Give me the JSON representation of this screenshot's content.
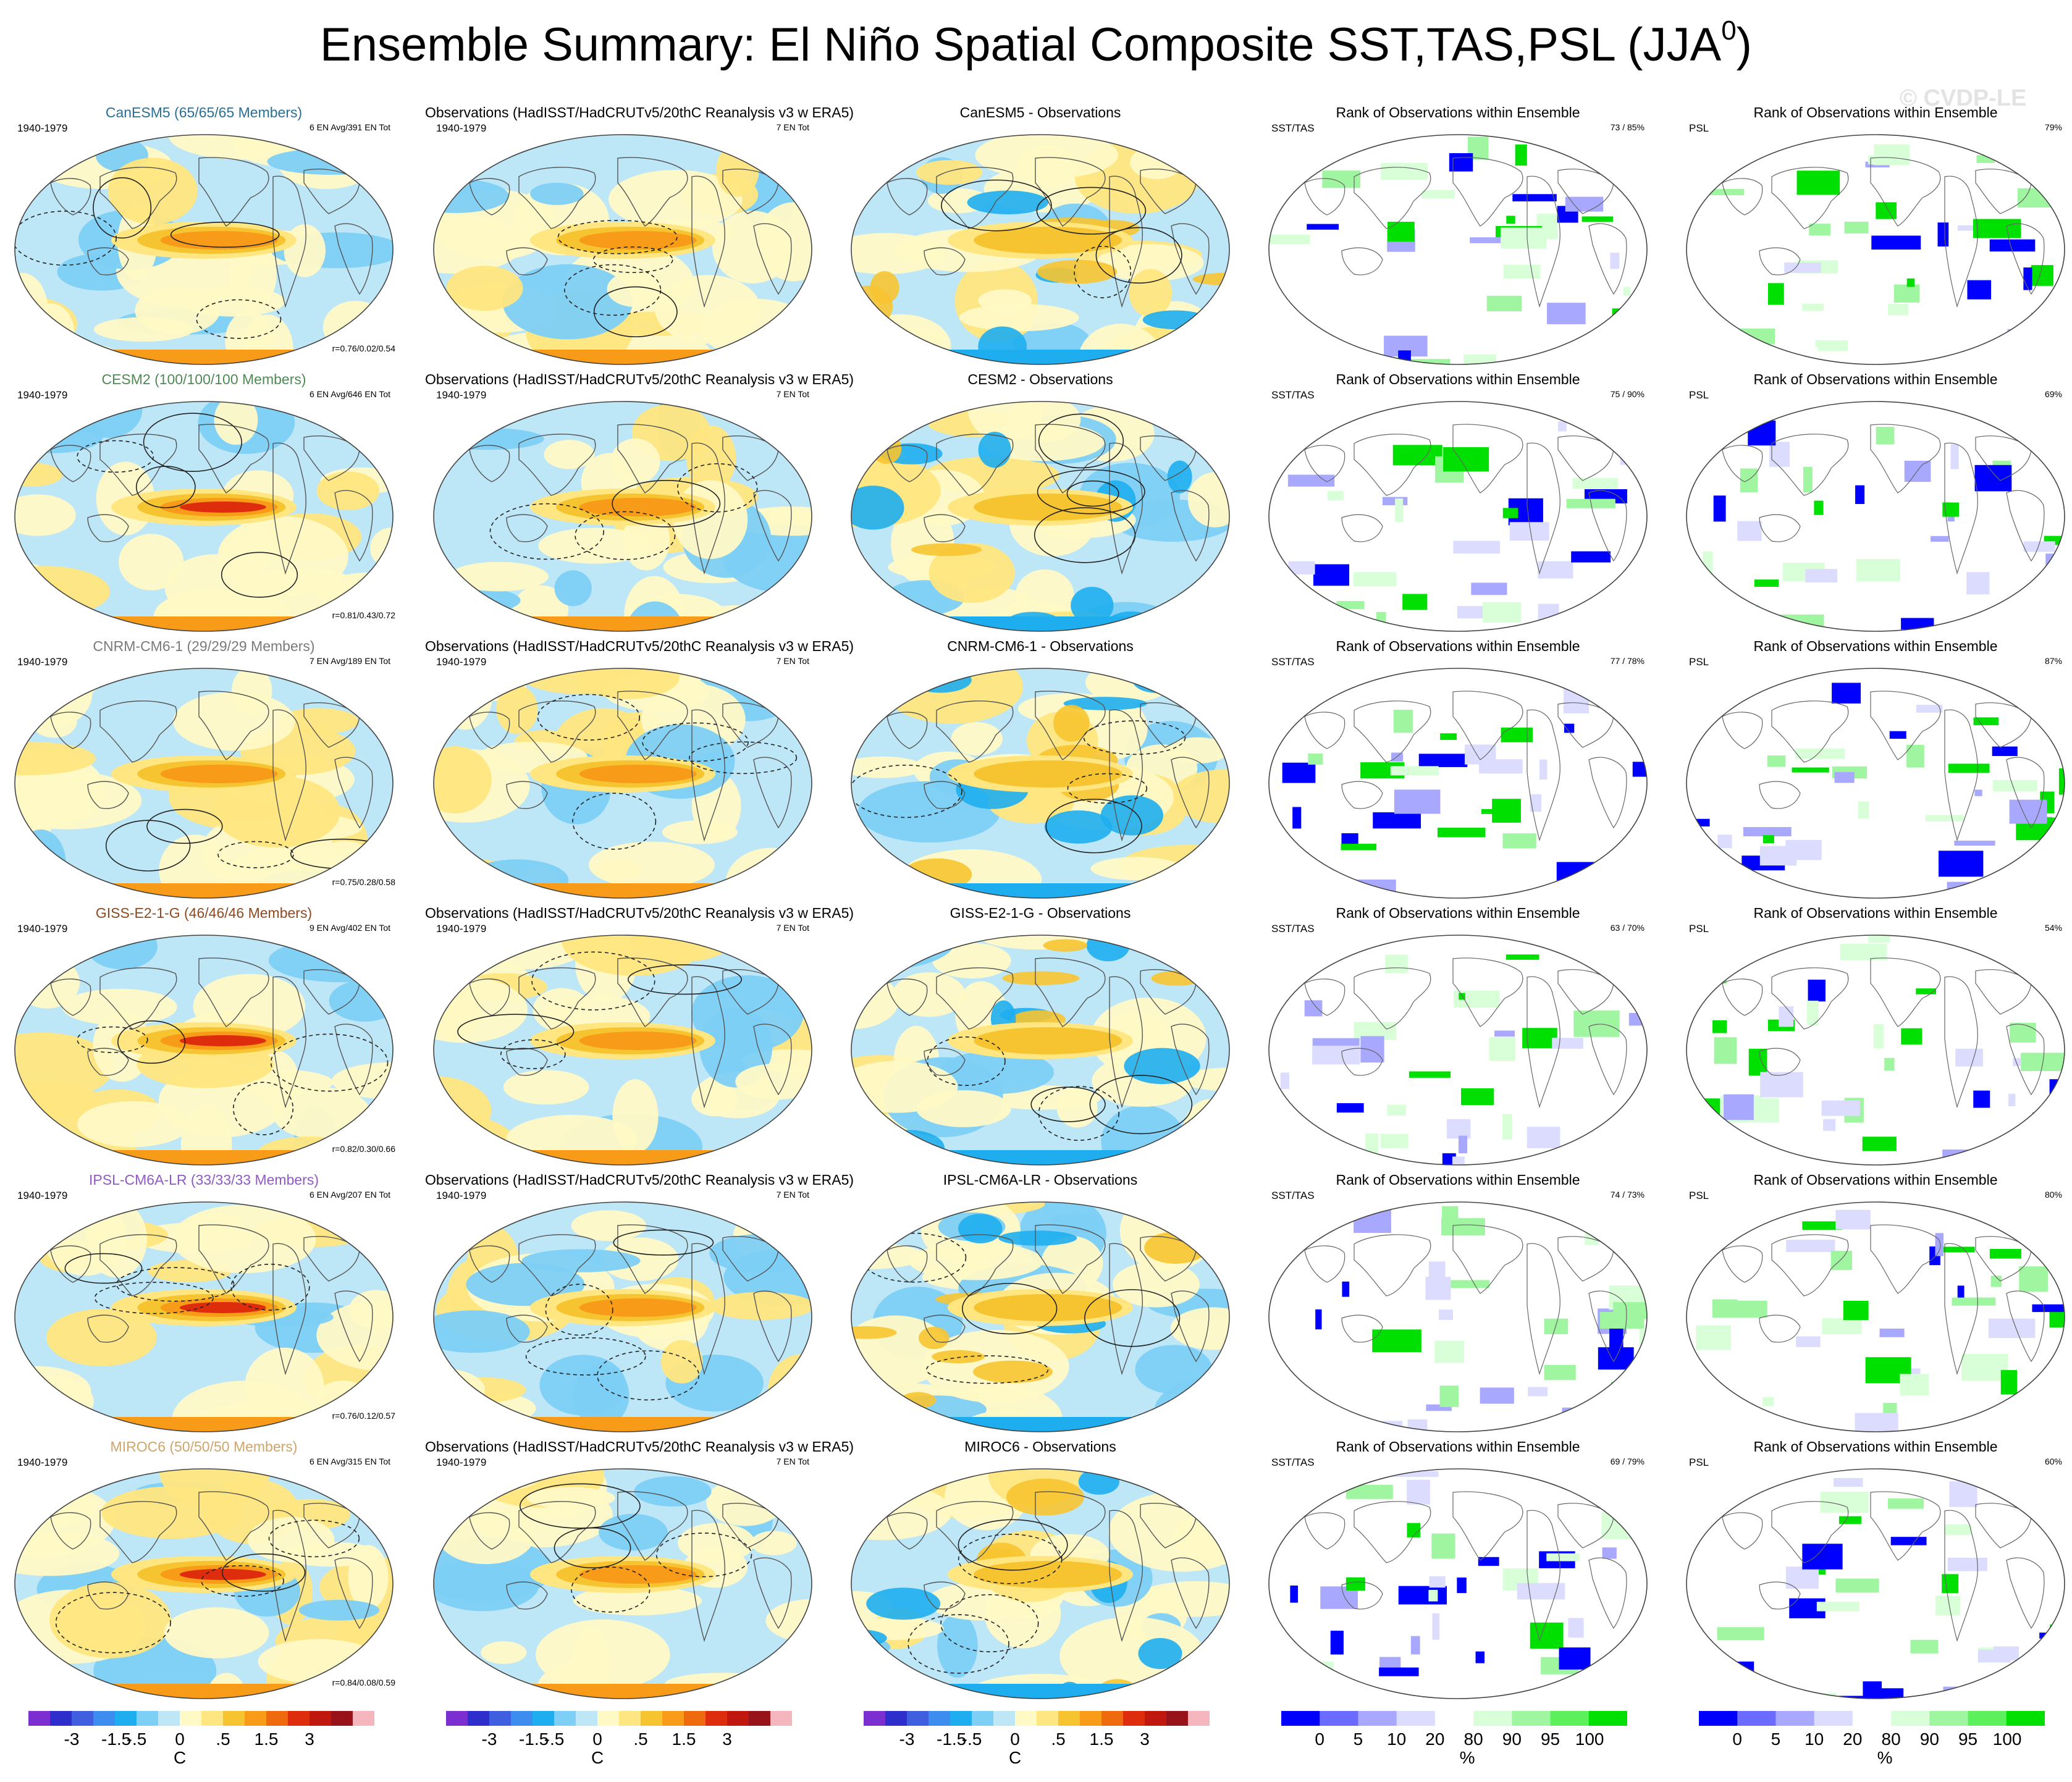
{
  "title": {
    "main": "Ensemble Summary: El Niño Spatial Composite SST,TAS,PSL (JJA",
    "superscript": "0",
    "close": ")"
  },
  "watermark": "© CVDP-LE",
  "colors": {
    "model_title": [
      "#2a6f93",
      "#4f8a55",
      "#7a7a7a",
      "#8b4a22",
      "#8f5bc2",
      "#cda56d"
    ],
    "temperature_scale": [
      "#7b2fd0",
      "#2e2ecc",
      "#3f5fe0",
      "#3d8cf0",
      "#1eaef0",
      "#7dcff5",
      "#bde6f7",
      "#fff9c6",
      "#ffe680",
      "#f7c431",
      "#f79b18",
      "#ee6a0d",
      "#dd2d0c",
      "#c0180f",
      "#98121a",
      "#f5b5bd"
    ],
    "rank_scale": [
      "#0000ff",
      "#6b6bff",
      "#a8a8ff",
      "#dcdcff",
      "#ffffff",
      "#d8ffd8",
      "#a0f5a0",
      "#5cf05c",
      "#00e000"
    ]
  },
  "column_titles": {
    "observations": "Observations (HadISST/HadCRUTv5/20thC Reanalysis v3 w ERA5)",
    "rank": "Rank of Observations within Ensemble",
    "diff_suffix": " - Observations"
  },
  "labels": {
    "period": "1940-1979",
    "obs_count": "7 EN Tot",
    "sst_tas": "SST/TAS",
    "psl": "PSL"
  },
  "rows": [
    {
      "model": "CanESM5",
      "title": "CanESM5 (65/65/65 Members)",
      "ens_info": "6 EN Avg/391 EN Tot",
      "corr": "r=0.76/0.02/0.54",
      "rank_sst": "73 /  85%",
      "rank_psl": "79%"
    },
    {
      "model": "CESM2",
      "title": "CESM2 (100/100/100 Members)",
      "ens_info": "6 EN Avg/646 EN Tot",
      "corr": "r=0.81/0.43/0.72",
      "rank_sst": "75 /  90%",
      "rank_psl": "69%"
    },
    {
      "model": "CNRM-CM6-1",
      "title": "CNRM-CM6-1 (29/29/29 Members)",
      "ens_info": "7 EN Avg/189 EN Tot",
      "corr": "r=0.75/0.28/0.58",
      "rank_sst": "77 /  78%",
      "rank_psl": "87%"
    },
    {
      "model": "GISS-E2-1-G",
      "title": "GISS-E2-1-G (46/46/46 Members)",
      "ens_info": "9 EN Avg/402 EN Tot",
      "corr": "r=0.82/0.30/0.66",
      "rank_sst": "63 /  70%",
      "rank_psl": "54%"
    },
    {
      "model": "IPSL-CM6A-LR",
      "title": "IPSL-CM6A-LR (33/33/33 Members)",
      "ens_info": "6 EN Avg/207 EN Tot",
      "corr": "r=0.76/0.12/0.57",
      "rank_sst": "74 /  73%",
      "rank_psl": "80%"
    },
    {
      "model": "MIROC6",
      "title": "MIROC6 (50/50/50 Members)",
      "ens_info": "6 EN Avg/315 EN Tot",
      "corr": "r=0.84/0.08/0.59",
      "rank_sst": "69 /  79%",
      "rank_psl": "60%"
    }
  ],
  "colorbars": {
    "temperature": {
      "tick_labels": [
        "-3",
        "-1.5",
        "-.5",
        "0",
        ".5",
        "1.5",
        "3"
      ],
      "unit": "C"
    },
    "rank": {
      "tick_labels": [
        "0",
        "5",
        "10",
        "20",
        "80",
        "90",
        "95",
        "100"
      ],
      "unit": "%"
    }
  },
  "chart_data": {
    "type": "heatmap",
    "description_title": "Ensemble Summary: El Niño Spatial Composite SST,TAS,PSL (JJA0)",
    "period": "1940-1979",
    "models": [
      "CanESM5",
      "CESM2",
      "CNRM-CM6-1",
      "GISS-E2-1-G",
      "IPSL-CM6A-LR",
      "MIROC6"
    ],
    "members": [
      65,
      100,
      29,
      46,
      33,
      50
    ],
    "en_avg": [
      6,
      6,
      7,
      9,
      6,
      6
    ],
    "en_tot": [
      391,
      646,
      189,
      402,
      207,
      315
    ],
    "obs_en_tot": 7,
    "pattern_correlation_sst_tas": [
      0.76,
      0.81,
      0.75,
      0.82,
      0.76,
      0.84
    ],
    "pattern_correlation_psl": [
      0.02,
      0.43,
      0.28,
      0.3,
      0.12,
      0.08
    ],
    "pattern_correlation_combined": [
      0.54,
      0.72,
      0.58,
      0.66,
      0.57,
      0.59
    ],
    "rank_sst_tas_value": [
      73,
      75,
      77,
      63,
      74,
      69
    ],
    "rank_sst_tas_pct": [
      85,
      90,
      78,
      70,
      73,
      79
    ],
    "rank_psl_pct": [
      79,
      69,
      87,
      54,
      80,
      60
    ],
    "temperature_levels": [
      -4,
      -3,
      -2,
      -1.5,
      -1,
      -0.5,
      -0.25,
      0,
      0.25,
      0.5,
      1,
      1.5,
      2,
      3,
      4
    ],
    "rank_levels": [
      0,
      5,
      10,
      20,
      80,
      90,
      95,
      100
    ],
    "units_temperature": "C",
    "units_rank": "%"
  }
}
